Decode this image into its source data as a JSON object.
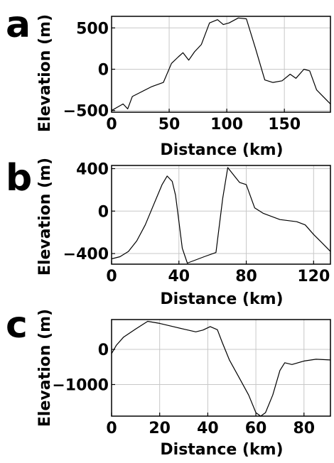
{
  "chart_data": [
    {
      "panel_label": "a",
      "type": "line",
      "xlabel": "Distance (km)",
      "ylabel": "Elevation (m)",
      "xlim": [
        0,
        190
      ],
      "ylim": [
        -520,
        640
      ],
      "grid": true,
      "x_ticks": [
        0,
        50,
        100,
        150
      ],
      "x_tick_labels": [
        "0",
        "50",
        "100",
        "150"
      ],
      "y_ticks": [
        -500,
        0,
        500
      ],
      "y_tick_labels": [
        "−500",
        "0",
        "500"
      ],
      "series": [
        {
          "x": [
            0,
            5,
            10,
            14,
            18,
            25,
            35,
            45,
            52,
            58,
            62,
            67,
            72,
            78,
            85,
            92,
            97,
            102,
            110,
            117,
            125,
            133,
            140,
            148,
            155,
            160,
            167,
            172,
            178,
            185,
            190
          ],
          "y": [
            -500,
            -460,
            -420,
            -480,
            -330,
            -280,
            -210,
            -160,
            70,
            150,
            200,
            110,
            210,
            300,
            560,
            600,
            540,
            560,
            620,
            610,
            250,
            -130,
            -160,
            -140,
            -60,
            -110,
            0,
            -20,
            -250,
            -350,
            -420
          ]
        }
      ]
    },
    {
      "panel_label": "b",
      "type": "line",
      "xlabel": "Distance (km)",
      "ylabel": "Elevation (m)",
      "xlim": [
        0,
        130
      ],
      "ylim": [
        -500,
        430
      ],
      "grid": true,
      "x_ticks": [
        0,
        40,
        80,
        120
      ],
      "x_tick_labels": [
        "0",
        "40",
        "80",
        "120"
      ],
      "y_ticks": [
        -400,
        0,
        400
      ],
      "y_tick_labels": [
        "−400",
        "0",
        "400"
      ],
      "series": [
        {
          "x": [
            0,
            5,
            10,
            15,
            20,
            25,
            30,
            33,
            36,
            38,
            40,
            42,
            45,
            55,
            62,
            66,
            69,
            72,
            76,
            80,
            85,
            90,
            100,
            110,
            115,
            120,
            125,
            130
          ],
          "y": [
            -450,
            -430,
            -380,
            -280,
            -130,
            60,
            250,
            330,
            280,
            150,
            -100,
            -350,
            -490,
            -430,
            -390,
            120,
            410,
            350,
            270,
            250,
            30,
            -20,
            -80,
            -100,
            -130,
            -220,
            -300,
            -380
          ]
        }
      ]
    },
    {
      "panel_label": "c",
      "type": "line",
      "xlabel": "Distance (km)",
      "ylabel": "Elevation (m)",
      "xlim": [
        0,
        91
      ],
      "ylim": [
        -1900,
        850
      ],
      "grid": true,
      "x_ticks": [
        0,
        20,
        40,
        60,
        80
      ],
      "x_tick_labels": [
        "0",
        "20",
        "40",
        "60",
        "80"
      ],
      "y_ticks": [
        0,
        -1000
      ],
      "y_tick_labels": [
        "0",
        "−1000"
      ],
      "series": [
        {
          "x": [
            0,
            2,
            5,
            10,
            15,
            20,
            25,
            30,
            35,
            38,
            41,
            44,
            46,
            49,
            53,
            57,
            60,
            62,
            64,
            67,
            70,
            72,
            75,
            80,
            85,
            91
          ],
          "y": [
            -120,
            120,
            350,
            580,
            800,
            740,
            660,
            580,
            500,
            550,
            650,
            560,
            200,
            -300,
            -800,
            -1300,
            -1800,
            -1900,
            -1800,
            -1300,
            -600,
            -380,
            -430,
            -330,
            -280,
            -300
          ]
        }
      ]
    }
  ]
}
